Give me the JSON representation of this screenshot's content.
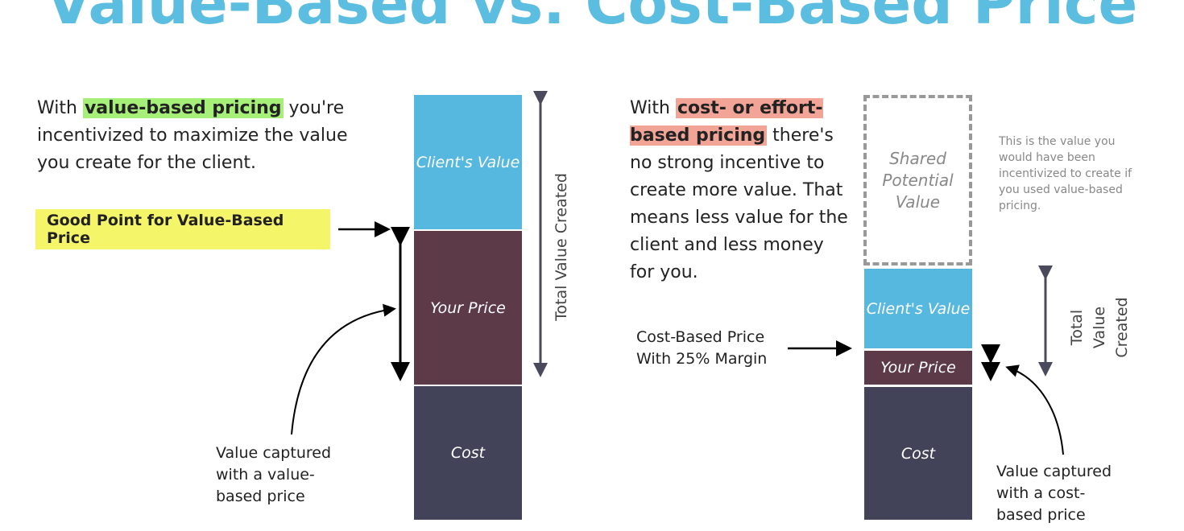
{
  "title": "Value-Based vs. Cost-Based Price",
  "left": {
    "text_pre": "With ",
    "highlight": "value-based pricing",
    "text_post": " you're incentivized to maximize the value you create for the client.",
    "callout": "Good Point for Value-Based Price",
    "bar": {
      "client_value": "Client's Value",
      "your_price": "Your Price",
      "cost": "Cost"
    },
    "total_label": "Total Value Created",
    "caption": "Value captured with a value-based price"
  },
  "right": {
    "text_pre": "With ",
    "highlight": "cost- or effort-based pricing",
    "text_post": " there's no strong incentive to create more value. That means less value for the client and less money for you.",
    "shared": "Shared Potential Value",
    "note": "This is the value you would have been incentivized to create if you used value-based pricing.",
    "bar": {
      "client_value": "Client's Value",
      "your_price": "Your Price",
      "cost": "Cost"
    },
    "total_label_1": "Total",
    "total_label_2": "Value",
    "total_label_3": "Created",
    "cost_label": "Cost-Based Price With 25% Margin",
    "caption": "Value captured with a cost-based price"
  },
  "colors": {
    "title": "#5bbde0",
    "client_value": "#56b8de",
    "your_price": "#5c3a47",
    "cost": "#424258",
    "green_highlight": "#a6f07a",
    "red_highlight": "#f2a597",
    "callout": "#f5f56a"
  }
}
